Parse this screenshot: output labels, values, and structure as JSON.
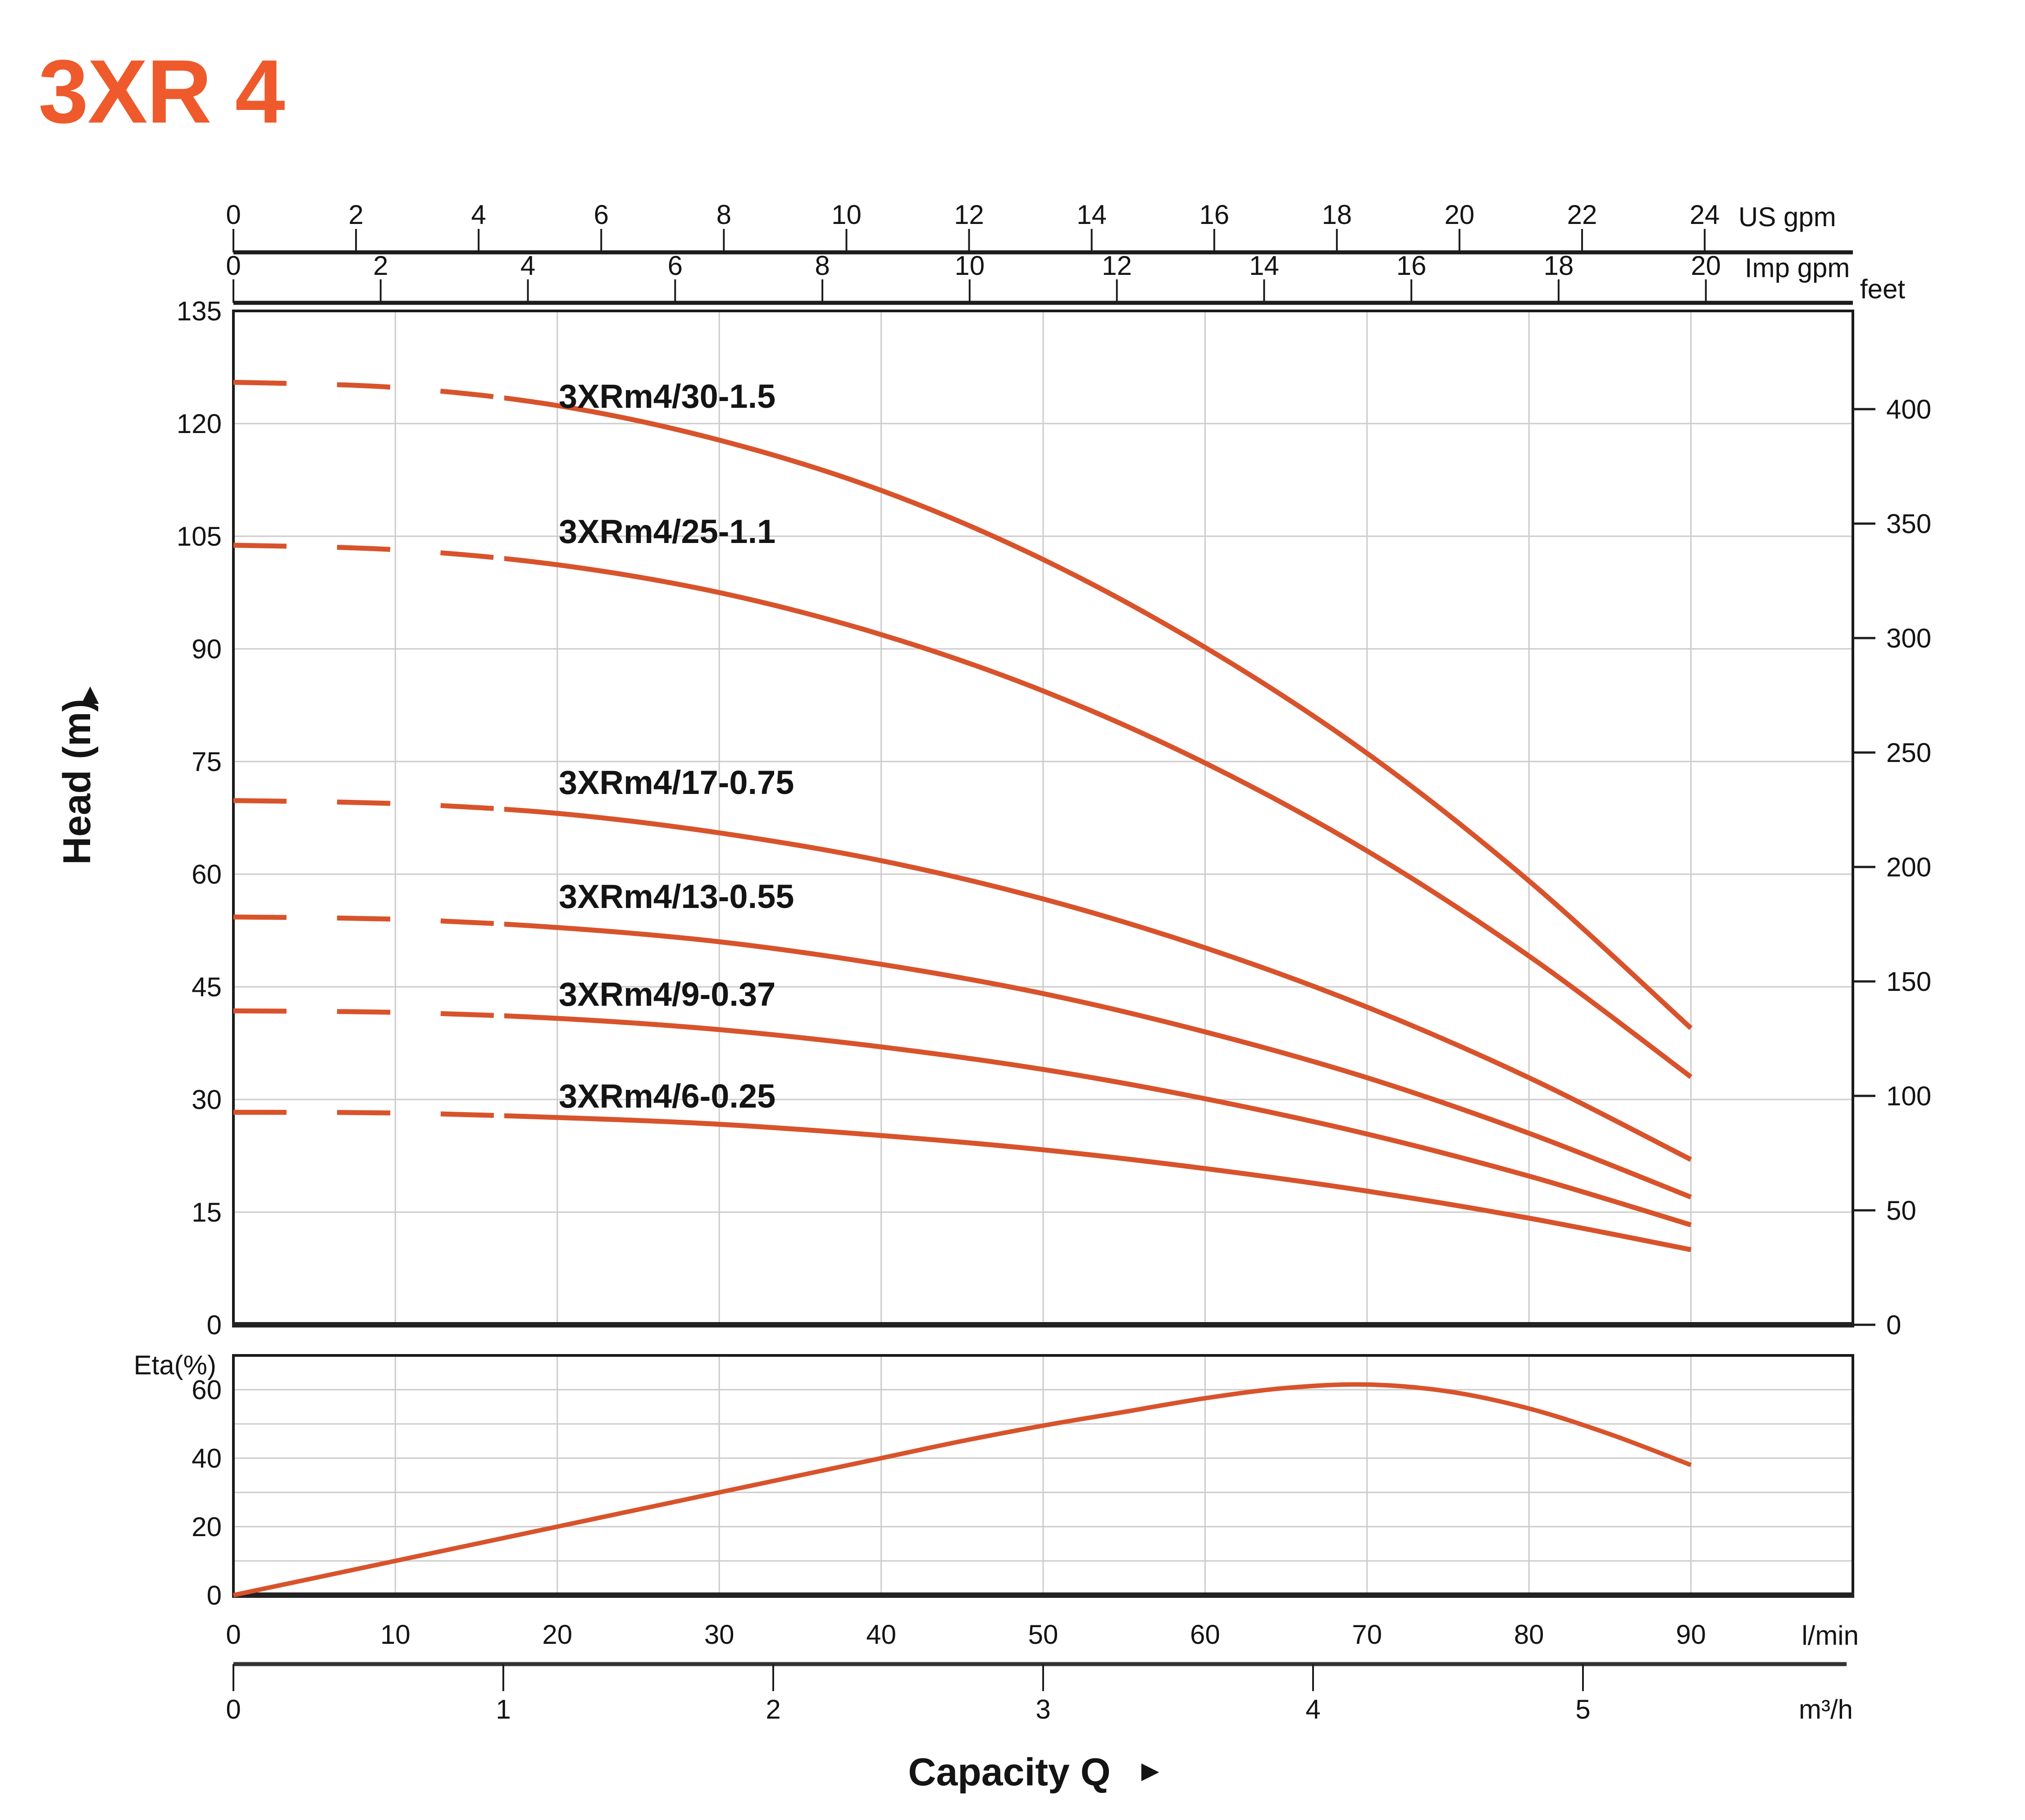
{
  "title": "3XR 4",
  "icons": {
    "up_arrow": "▲",
    "right_arrow": "►"
  },
  "colors": {
    "accent_orange": "#EE5A2B",
    "curve_orange": "#D8532B",
    "grid_gray": "#CBCBCB",
    "axis_black": "#1A1A1A"
  },
  "axes": {
    "us_gpm": {
      "label": "US gpm",
      "ticks": [
        0,
        2,
        4,
        6,
        8,
        10,
        12,
        14,
        16,
        18,
        20,
        22,
        24
      ]
    },
    "imp_gpm": {
      "label": "Imp gpm",
      "ticks": [
        0,
        2,
        4,
        6,
        8,
        10,
        12,
        14,
        16,
        18,
        20
      ]
    },
    "head": {
      "label": "Head (m)",
      "ticks": [
        135,
        120,
        105,
        90,
        75,
        60,
        45,
        30,
        15,
        0
      ]
    },
    "feet": {
      "label": "feet",
      "ticks": [
        400,
        350,
        300,
        250,
        200,
        150,
        100,
        50,
        0
      ]
    },
    "l_min": {
      "label": "l/min",
      "ticks": [
        0,
        10,
        20,
        30,
        40,
        50,
        60,
        70,
        80,
        90
      ]
    },
    "m3_h": {
      "label": "m³/h",
      "ticks": [
        0,
        1,
        2,
        3,
        4,
        5
      ]
    },
    "eta": {
      "label": "Eta(%)",
      "ticks": [
        60,
        40,
        20,
        0
      ]
    },
    "capacity": {
      "label": "Capacity Q"
    }
  },
  "chart_data": {
    "type": "line",
    "title": "3XR 4 submersible pump performance curves",
    "xlabel": "Capacity Q",
    "x_units": [
      "l/min",
      "m³/h",
      "US gpm",
      "Imp gpm"
    ],
    "ylabel_left": "Head (m)",
    "ylabel_right": "feet",
    "x_range_lmin": [
      0,
      100
    ],
    "head_range_m": [
      0,
      135
    ],
    "feet_ticks": [
      0,
      50,
      100,
      150,
      200,
      250,
      300,
      350,
      400
    ],
    "grid": true,
    "legend_position": "labels-on-curves",
    "x_lmin": [
      0,
      10,
      20,
      30,
      40,
      50,
      60,
      70,
      80,
      90
    ],
    "dashed_below_lmin": 17,
    "series": [
      {
        "name": "3XRm4/30-1.5",
        "head_m": [
          125.5,
          124.8,
          122.4,
          117.8,
          111.1,
          101.9,
          90.2,
          76.1,
          59.1,
          39.5
        ]
      },
      {
        "name": "3XRm4/25-1.1",
        "head_m": [
          103.8,
          103.2,
          101.2,
          97.5,
          91.9,
          84.4,
          74.8,
          63.1,
          49.1,
          33.0
        ]
      },
      {
        "name": "3XRm4/17-0.75",
        "head_m": [
          69.8,
          69.4,
          68.1,
          65.5,
          61.8,
          56.7,
          50.2,
          42.3,
          32.9,
          22.0
        ]
      },
      {
        "name": "3XRm4/13-0.55",
        "head_m": [
          54.3,
          54.0,
          52.9,
          51.0,
          48.0,
          44.1,
          39.0,
          32.9,
          25.5,
          17.0
        ]
      },
      {
        "name": "3XRm4/9-0.37",
        "head_m": [
          41.8,
          41.6,
          40.8,
          39.3,
          37.0,
          34.0,
          30.1,
          25.4,
          19.8,
          13.3
        ]
      },
      {
        "name": "3XRm4/6-0.25",
        "head_m": [
          28.3,
          28.2,
          27.6,
          26.7,
          25.2,
          23.3,
          20.8,
          17.8,
          14.2,
          10.0
        ]
      }
    ],
    "efficiency": {
      "name": "Eta(%)",
      "range_pct": [
        0,
        70
      ],
      "x_lmin": [
        0,
        5,
        10,
        15,
        20,
        25,
        30,
        35,
        40,
        45,
        50,
        55,
        60,
        65,
        70,
        75,
        80,
        85,
        90
      ],
      "eta_pct": [
        0,
        5,
        10,
        15,
        20,
        25,
        30,
        35,
        40,
        45,
        49.5,
        53.5,
        57.5,
        60.5,
        61.5,
        59.5,
        54.5,
        47,
        38
      ]
    }
  }
}
